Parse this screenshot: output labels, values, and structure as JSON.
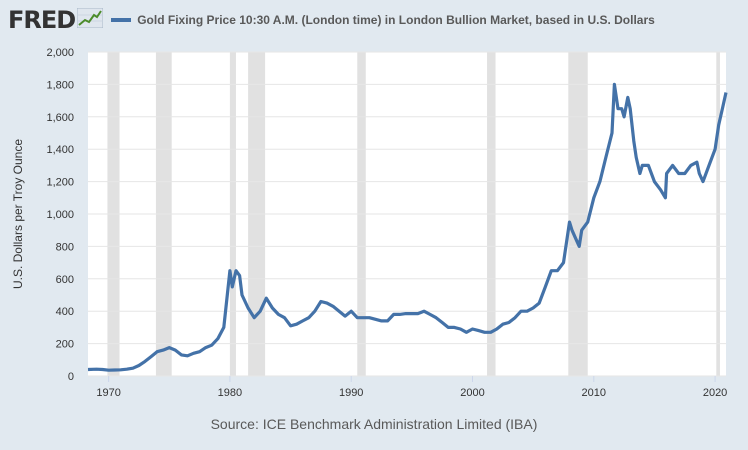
{
  "brand": {
    "logo_text": "FRED"
  },
  "colors": {
    "background": "#e1e9f0",
    "plot_background": "#ffffff",
    "line": "#4472a8",
    "recession": "#e1e1e1",
    "gridline": "#e6e6e6"
  },
  "source": "Source: ICE Benchmark Administration Limited (IBA)",
  "chart_data": {
    "type": "line",
    "title": "Gold Fixing Price 10:30 A.M. (London time) in London Bullion Market, based in U.S. Dollars",
    "xlabel": "",
    "ylabel": "U.S. Dollars per Troy Ounce",
    "xlim": [
      1968.3,
      2020.9
    ],
    "ylim": [
      0,
      2000
    ],
    "grid": "horizontal",
    "legend": "top",
    "x_ticks": [
      {
        "value": 1970,
        "label": "1970"
      },
      {
        "value": 1980,
        "label": "1980"
      },
      {
        "value": 1990,
        "label": "1990"
      },
      {
        "value": 2000,
        "label": "2000"
      },
      {
        "value": 2010,
        "label": "2010"
      },
      {
        "value": 2020,
        "label": "2020"
      }
    ],
    "y_ticks": [
      {
        "value": 0,
        "label": "0"
      },
      {
        "value": 200,
        "label": "200"
      },
      {
        "value": 400,
        "label": "400"
      },
      {
        "value": 600,
        "label": "600"
      },
      {
        "value": 800,
        "label": "800"
      },
      {
        "value": 1000,
        "label": "1,000"
      },
      {
        "value": 1200,
        "label": "1,200"
      },
      {
        "value": 1400,
        "label": "1,400"
      },
      {
        "value": 1600,
        "label": "1,600"
      },
      {
        "value": 1800,
        "label": "1,800"
      },
      {
        "value": 2000,
        "label": "2,000"
      }
    ],
    "recessions": [
      [
        1969.9,
        1970.9
      ],
      [
        1973.9,
        1975.2
      ],
      [
        1980.0,
        1980.5
      ],
      [
        1981.5,
        1982.9
      ],
      [
        1990.5,
        1991.2
      ],
      [
        2001.2,
        2001.9
      ],
      [
        2007.9,
        2009.5
      ],
      [
        2020.1,
        2020.4
      ]
    ],
    "series": [
      {
        "name": "Gold Fixing Price 10:30 A.M. (London time) in London Bullion Market, based in U.S. Dollars",
        "x": [
          1968.3,
          1969.0,
          1969.5,
          1970.0,
          1970.5,
          1971.0,
          1971.5,
          1972.0,
          1972.5,
          1973.0,
          1973.5,
          1974.0,
          1974.5,
          1975.0,
          1975.5,
          1976.0,
          1976.5,
          1977.0,
          1977.5,
          1978.0,
          1978.5,
          1979.0,
          1979.5,
          1980.0,
          1980.2,
          1980.5,
          1980.8,
          1981.0,
          1981.5,
          1982.0,
          1982.5,
          1983.0,
          1983.5,
          1984.0,
          1984.5,
          1985.0,
          1985.5,
          1986.0,
          1986.5,
          1987.0,
          1987.5,
          1988.0,
          1988.5,
          1989.0,
          1989.5,
          1990.0,
          1990.5,
          1991.0,
          1991.5,
          1992.0,
          1992.5,
          1993.0,
          1993.5,
          1994.0,
          1994.5,
          1995.0,
          1995.5,
          1996.0,
          1996.5,
          1997.0,
          1997.5,
          1998.0,
          1998.5,
          1999.0,
          1999.5,
          2000.0,
          2000.5,
          2001.0,
          2001.5,
          2002.0,
          2002.5,
          2003.0,
          2003.5,
          2004.0,
          2004.5,
          2005.0,
          2005.5,
          2006.0,
          2006.5,
          2007.0,
          2007.5,
          2008.0,
          2008.2,
          2008.5,
          2008.8,
          2009.0,
          2009.5,
          2010.0,
          2010.5,
          2011.0,
          2011.5,
          2011.7,
          2012.0,
          2012.3,
          2012.5,
          2012.8,
          2013.0,
          2013.3,
          2013.5,
          2013.8,
          2014.0,
          2014.5,
          2015.0,
          2015.5,
          2015.9,
          2016.0,
          2016.5,
          2017.0,
          2017.5,
          2018.0,
          2018.5,
          2018.7,
          2019.0,
          2019.5,
          2020.0,
          2020.3,
          2020.6,
          2020.9
        ],
        "y": [
          40,
          42,
          40,
          36,
          37,
          38,
          42,
          48,
          65,
          90,
          120,
          150,
          160,
          175,
          160,
          130,
          125,
          140,
          150,
          175,
          190,
          230,
          300,
          650,
          550,
          650,
          620,
          500,
          420,
          360,
          400,
          480,
          420,
          380,
          360,
          310,
          320,
          340,
          360,
          400,
          460,
          450,
          430,
          400,
          370,
          400,
          360,
          360,
          360,
          350,
          340,
          340,
          380,
          380,
          385,
          385,
          385,
          400,
          380,
          360,
          330,
          300,
          300,
          290,
          270,
          290,
          280,
          270,
          270,
          290,
          320,
          330,
          360,
          400,
          400,
          420,
          450,
          550,
          650,
          650,
          700,
          950,
          900,
          850,
          800,
          900,
          950,
          1100,
          1200,
          1350,
          1500,
          1800,
          1650,
          1650,
          1600,
          1720,
          1650,
          1450,
          1350,
          1250,
          1300,
          1300,
          1200,
          1150,
          1100,
          1250,
          1300,
          1250,
          1250,
          1300,
          1320,
          1250,
          1200,
          1300,
          1400,
          1550,
          1650,
          1750
        ]
      }
    ]
  }
}
